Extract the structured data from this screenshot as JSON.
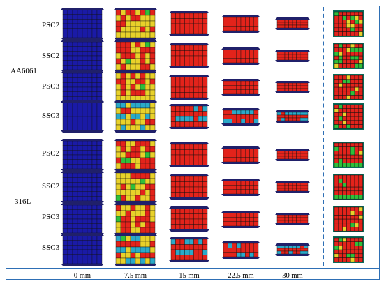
{
  "materials": [
    {
      "label": "AA6061",
      "configs": [
        "PSC2",
        "SSC2",
        "PSC3",
        "SSC3"
      ]
    },
    {
      "label": "316L",
      "configs": [
        "PSC2",
        "SSC2",
        "PSC3",
        "SSC3"
      ]
    }
  ],
  "displacements": [
    "0 mm",
    "7.5 mm",
    "15 mm",
    "22.5 mm",
    "30 mm"
  ],
  "colors": {
    "frame": "#2e6fb5",
    "undeformed": "#1a1aa6",
    "low_strain": "#2fbf3a",
    "mid_strain": "#e8d12a",
    "high_strain": "#e3231b",
    "plate": "#20206a"
  }
}
